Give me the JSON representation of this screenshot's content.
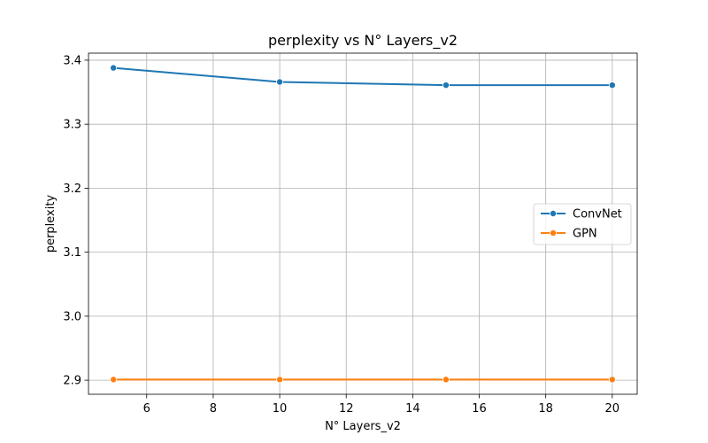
{
  "chart_data": {
    "type": "line",
    "title": "perplexity vs N° Layers_v2",
    "xlabel": "N° Layers_v2",
    "ylabel": "perplexity",
    "xlim": [
      4.25,
      20.75
    ],
    "ylim": [
      2.878,
      3.411
    ],
    "xticks": [
      6,
      8,
      10,
      12,
      14,
      16,
      18,
      20
    ],
    "yticks": [
      2.9,
      3.0,
      3.1,
      3.2,
      3.3,
      3.4
    ],
    "ytick_labels": [
      "2.9",
      "3.0",
      "3.1",
      "3.2",
      "3.3",
      "3.4"
    ],
    "grid": true,
    "legend_position": "center-right",
    "x": [
      5,
      10,
      15,
      20
    ],
    "series": [
      {
        "name": "ConvNet",
        "color": "#1f77b4",
        "marker": "circle",
        "values": [
          3.388,
          3.366,
          3.361,
          3.361
        ]
      },
      {
        "name": "GPN",
        "color": "#ff7f0e",
        "marker": "circle",
        "values": [
          2.901,
          2.901,
          2.901,
          2.901
        ]
      }
    ]
  }
}
